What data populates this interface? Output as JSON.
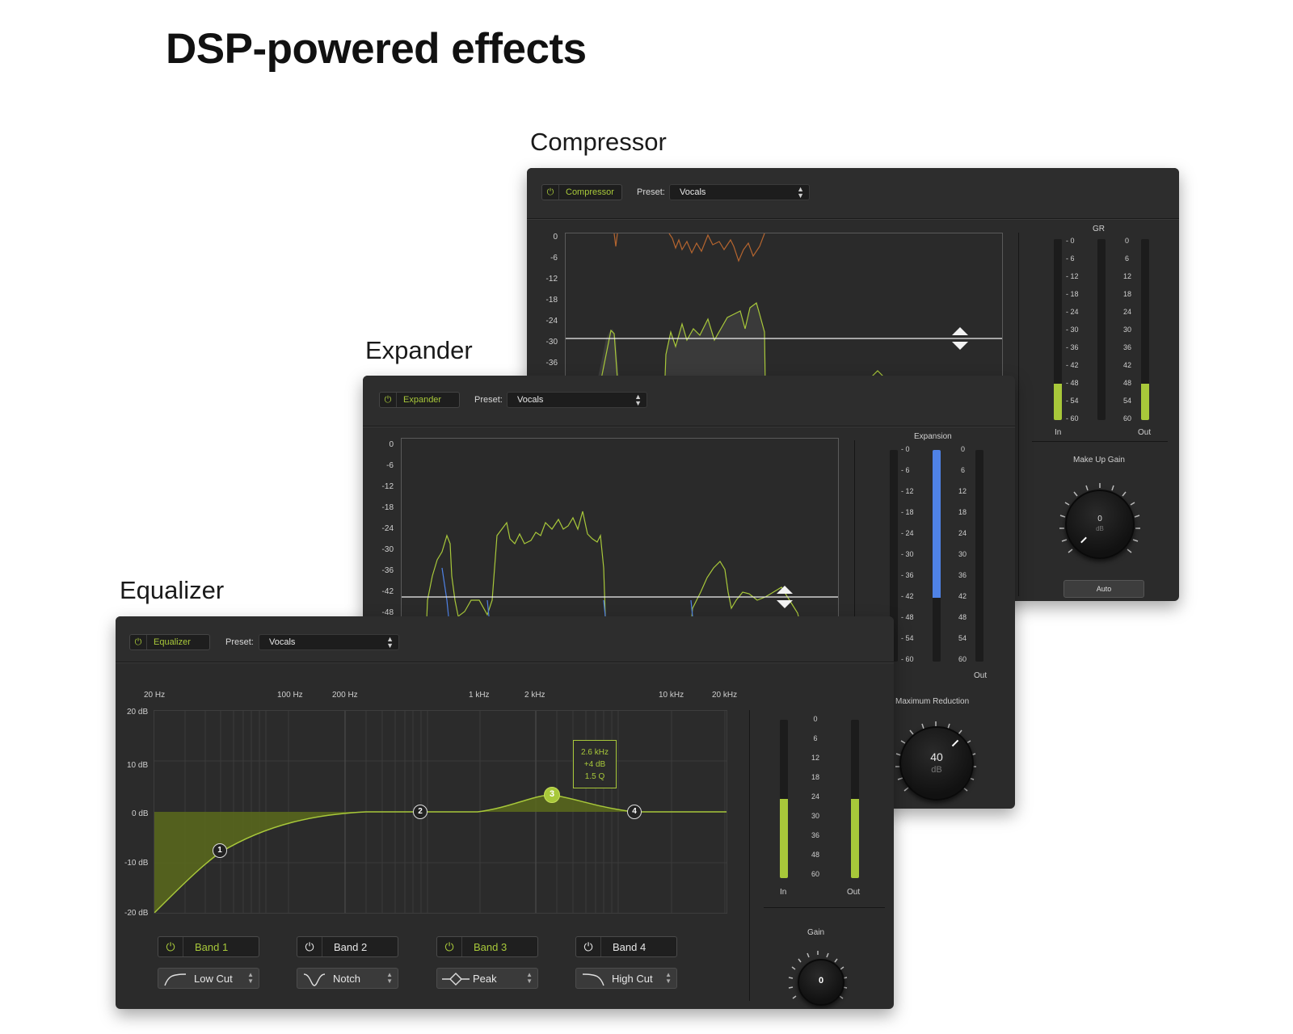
{
  "heading": "DSP-powered effects",
  "common": {
    "preset_label": "Preset:",
    "preset_value": "Vocals",
    "power_glyph": "⏻"
  },
  "compressor": {
    "title": "Compressor",
    "toggle_label": "Compressor",
    "y_ticks": [
      "0",
      "-6",
      "-12",
      "-18",
      "-24",
      "-30",
      "-36"
    ],
    "gr_label": "GR",
    "left_scale": [
      "- 0",
      "- 6",
      "- 12",
      "- 18",
      "- 24",
      "- 30",
      "- 36",
      "- 42",
      "- 48",
      "- 54",
      "- 60"
    ],
    "right_scale": [
      "0",
      "6",
      "12",
      "18",
      "24",
      "30",
      "36",
      "42",
      "48",
      "54",
      "60"
    ],
    "in_label": "In",
    "out_label": "Out",
    "in_level": 0.2,
    "out_level": 0.2,
    "makeup_label": "Make Up Gain",
    "knob_value": "0",
    "knob_unit": "dB",
    "auto_label": "Auto"
  },
  "expander": {
    "title": "Expander",
    "toggle_label": "Expander",
    "y_ticks": [
      "0",
      "-6",
      "-12",
      "-18",
      "-24",
      "-30",
      "-36",
      "-42",
      "-48"
    ],
    "expansion_label": "Expansion",
    "left_scale": [
      "- 0",
      "- 6",
      "- 12",
      "- 18",
      "- 24",
      "- 30",
      "- 36",
      "- 42",
      "- 48",
      "- 54",
      "- 60"
    ],
    "right_scale": [
      "0",
      "6",
      "12",
      "18",
      "24",
      "30",
      "36",
      "42",
      "48",
      "54",
      "60"
    ],
    "out_label": "Out",
    "expansion_level": 0.7,
    "max_reduction_label": "Maximum Reduction",
    "knob_value": "40",
    "knob_unit": "dB"
  },
  "equalizer": {
    "title": "Equalizer",
    "toggle_label": "Equalizer",
    "freq_labels": [
      "20 Hz",
      "100 Hz",
      "200 Hz",
      "1 kHz",
      "2 kHz",
      "10 kHz",
      "20 kHz"
    ],
    "db_labels": [
      "20 dB",
      "10 dB",
      "0 dB",
      "-10 dB",
      "-20 dB"
    ],
    "tooltip": [
      "2.6 kHz",
      "+4 dB",
      "1.5 Q"
    ],
    "nodes": [
      "1",
      "2",
      "3",
      "4"
    ],
    "meter_scale": [
      "0",
      "6",
      "12",
      "18",
      "24",
      "30",
      "36",
      "48",
      "60"
    ],
    "in_label": "In",
    "out_label": "Out",
    "in_level": 0.5,
    "out_level": 0.5,
    "gain_label": "Gain",
    "gain_value": "0",
    "bands": [
      {
        "label": "Band 1",
        "active": true,
        "type": "Low Cut"
      },
      {
        "label": "Band 2",
        "active": false,
        "type": "Notch"
      },
      {
        "label": "Band 3",
        "active": true,
        "type": "Peak"
      },
      {
        "label": "Band 4",
        "active": false,
        "type": "High Cut"
      }
    ]
  },
  "colors": {
    "accent": "#a8c83a",
    "expansion": "#4f82e6",
    "compressor_gr_trace": "#b5652f"
  }
}
